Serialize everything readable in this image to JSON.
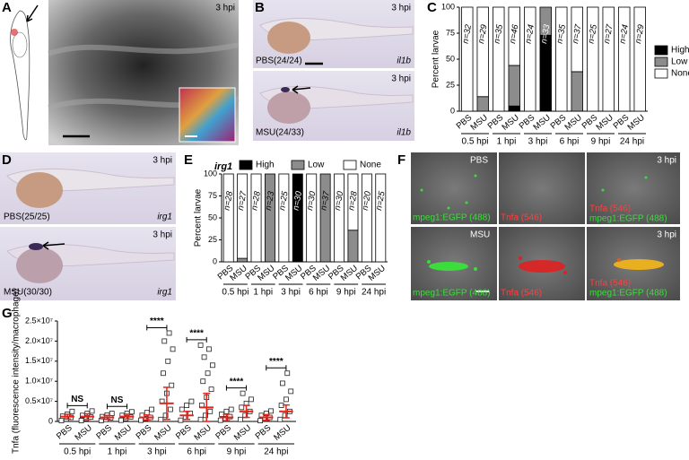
{
  "panels": {
    "letters": [
      "A",
      "B",
      "C",
      "D",
      "E",
      "F",
      "G"
    ],
    "a": {
      "time": "3 hpi"
    },
    "b": {
      "top": {
        "time": "3 hpi",
        "label": "PBS(24/24)",
        "gene": "il1b"
      },
      "bottom": {
        "time": "3 hpi",
        "label": "MSU(24/33)",
        "gene": "il1b"
      }
    },
    "d": {
      "top": {
        "time": "3 hpi",
        "label": "PBS(25/25)",
        "gene": "irg1"
      },
      "bottom": {
        "time": "3 hpi",
        "label": "MSU(30/30)",
        "gene": "irg1"
      }
    },
    "f": {
      "pbs": "PBS",
      "msu": "MSU",
      "time": "3 hpi",
      "green": "mpeg1:EGFP (488)",
      "red": "Tnfa (546)"
    }
  },
  "chart_data": [
    {
      "type": "stacked_bar",
      "ylabel": "Percent larvae",
      "legend": "right",
      "categories": [
        "PBS",
        "MSU",
        "PBS",
        "MSU",
        "PBS",
        "MSU",
        "PBS",
        "MSU",
        "PBS",
        "MSU",
        "PBS",
        "MSU"
      ],
      "groups": [
        "0.5 hpi",
        "1 hpi",
        "3 hpi",
        "6 hpi",
        "9 hpi",
        "24 hpi"
      ],
      "n_labels": [
        "n=32",
        "n=29",
        "n=35",
        "n=46",
        "n=24",
        "n=33",
        "n=35",
        "n=37",
        "n=25",
        "n=27",
        "n=24",
        "n=29"
      ],
      "series": [
        {
          "name": "High",
          "color": "#000000",
          "values": [
            0,
            0,
            0,
            5,
            0,
            73,
            0,
            0,
            0,
            0,
            0,
            0
          ]
        },
        {
          "name": "Low",
          "color": "#8c8c8c",
          "values": [
            0,
            14,
            0,
            39,
            0,
            27,
            0,
            38,
            0,
            0,
            0,
            0
          ]
        },
        {
          "name": "None",
          "color": "#ffffff",
          "values": [
            100,
            86,
            100,
            56,
            100,
            0,
            100,
            62,
            100,
            100,
            100,
            100
          ]
        }
      ],
      "ylim": [
        0,
        100
      ],
      "yticks": [
        0,
        25,
        50,
        75,
        100
      ]
    },
    {
      "type": "stacked_bar",
      "title": "irg1",
      "ylabel": "Percent larvae",
      "legend": "top",
      "categories": [
        "PBS",
        "MSU",
        "PBS",
        "MSU",
        "PBS",
        "MSU",
        "PBS",
        "MSU",
        "PBS",
        "MSU",
        "PBS",
        "MSU"
      ],
      "groups": [
        "0.5 hpi",
        "1 hpi",
        "3 hpi",
        "6 hpi",
        "9 hpi",
        "24 hpi"
      ],
      "n_labels": [
        "n=28",
        "n=27",
        "n=28",
        "n=23",
        "n=25",
        "n=30",
        "n=30",
        "n=37",
        "n=30",
        "n=28",
        "n=20",
        "n=25"
      ],
      "series": [
        {
          "name": "High",
          "color": "#000000",
          "values": [
            0,
            0,
            0,
            0,
            0,
            100,
            0,
            0,
            0,
            0,
            0,
            0
          ]
        },
        {
          "name": "Low",
          "color": "#8c8c8c",
          "values": [
            0,
            4,
            0,
            100,
            0,
            0,
            0,
            100,
            0,
            36,
            0,
            0
          ]
        },
        {
          "name": "None",
          "color": "#ffffff",
          "values": [
            100,
            96,
            100,
            0,
            100,
            0,
            100,
            0,
            100,
            64,
            100,
            100
          ]
        }
      ],
      "ylim": [
        0,
        100
      ],
      "yticks": [
        0,
        25,
        50,
        75,
        100
      ]
    },
    {
      "type": "dot_plot",
      "ylabel": "Tnfa (fluorescence intensity/macrophage)",
      "color": "#e0261b",
      "categories": [
        "PBS",
        "MSU",
        "PBS",
        "MSU",
        "PBS",
        "MSU",
        "PBS",
        "MSU",
        "PBS",
        "MSU",
        "PBS",
        "MSU"
      ],
      "groups": [
        "0.5 hpi",
        "1 hpi",
        "3 hpi",
        "6 hpi",
        "9 hpi",
        "24 hpi"
      ],
      "annotations": [
        "NS",
        "NS",
        "****",
        "****",
        "****",
        "****"
      ],
      "values": [
        1200000,
        1200000,
        1000000,
        1200000,
        1000000,
        4500000,
        1500000,
        3500000,
        1000000,
        2500000,
        1000000,
        2500000
      ],
      "errors": [
        600000,
        700000,
        500000,
        600000,
        600000,
        4000000,
        1000000,
        3500000,
        800000,
        1500000,
        700000,
        1600000
      ],
      "points": [
        [
          200000,
          600000,
          1000000,
          1300000,
          1800000,
          2500000
        ],
        [
          200000,
          700000,
          1100000,
          1500000,
          2000000,
          2600000
        ],
        [
          200000,
          500000,
          900000,
          1200000,
          1600000,
          2000000
        ],
        [
          300000,
          700000,
          1100000,
          1500000,
          2000000,
          2400000
        ],
        [
          300000,
          700000,
          1000000,
          1500000,
          2200000,
          3000000
        ],
        [
          500000,
          1500000,
          3000000,
          5000000,
          7000000,
          9000000,
          12000000,
          15000000,
          18000000,
          20000000,
          22000000
        ],
        [
          300000,
          1000000,
          2000000,
          3000000,
          4000000,
          5000000
        ],
        [
          500000,
          1500000,
          2500000,
          4000000,
          6000000,
          8000000,
          10000000,
          12000000,
          14000000,
          16000000,
          18000000,
          19000000
        ],
        [
          300000,
          700000,
          1200000,
          1800000,
          2500000,
          3000000
        ],
        [
          500000,
          1500000,
          2500000,
          3500000,
          4500000,
          5500000,
          7000000
        ],
        [
          200000,
          600000,
          1000000,
          1500000,
          2000000,
          2600000
        ],
        [
          500000,
          1500000,
          2500000,
          4000000,
          5500000,
          7500000,
          9500000,
          12000000
        ]
      ],
      "ylim": [
        0,
        25000000
      ],
      "yticks": [
        0,
        {
          "value": 5000000,
          "label": "0.5×10⁷"
        },
        {
          "value": 10000000,
          "label": "1.0×10⁷"
        },
        {
          "value": 15000000,
          "label": "1.5×10⁷"
        },
        {
          "value": 20000000,
          "label": "2.0×10⁷"
        },
        {
          "value": 25000000,
          "label": "2.5×10⁷"
        }
      ]
    }
  ]
}
